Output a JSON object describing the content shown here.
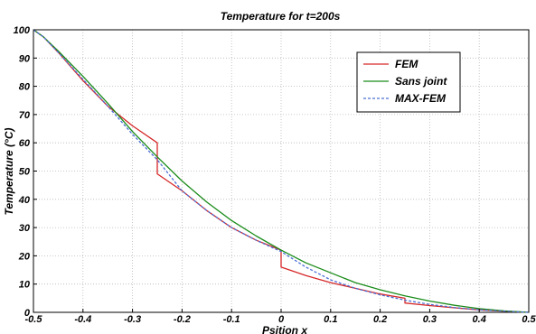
{
  "chart_data": {
    "type": "line",
    "title": "Temperature for t=200s",
    "xlabel": "Psition x",
    "ylabel": "Temperature (°C)",
    "xlim": [
      -0.5,
      0.5
    ],
    "ylim": [
      0,
      100
    ],
    "xticks": [
      -0.5,
      -0.4,
      -0.3,
      -0.2,
      -0.1,
      0,
      0.1,
      0.2,
      0.3,
      0.4,
      0.5
    ],
    "xtick_labels": [
      "-0.5",
      "-0.4",
      "-0.3",
      "-0.2",
      "-0.1",
      "0",
      "0.1",
      "0.2",
      "0.3",
      "0.4",
      "0.5"
    ],
    "yticks": [
      0,
      10,
      20,
      30,
      40,
      50,
      60,
      70,
      80,
      90,
      100
    ],
    "ytick_labels": [
      "0",
      "10",
      "20",
      "30",
      "40",
      "50",
      "60",
      "70",
      "80",
      "90",
      "100"
    ],
    "grid": true,
    "legend_position": "top-right",
    "series": [
      {
        "name": "FEM",
        "color": "#d62728",
        "dash": "solid",
        "x": [
          -0.5,
          -0.48,
          -0.45,
          -0.4,
          -0.35,
          -0.3,
          -0.25,
          -0.25,
          -0.2,
          -0.15,
          -0.1,
          -0.05,
          0,
          0,
          0.05,
          0.1,
          0.15,
          0.2,
          0.25,
          0.25,
          0.3,
          0.35,
          0.4,
          0.45,
          0.5
        ],
        "y": [
          100,
          97.5,
          92,
          82,
          73,
          66,
          60,
          49,
          43,
          36,
          30,
          25.5,
          22,
          16,
          13,
          10.5,
          8.5,
          6.5,
          5,
          3.3,
          2.4,
          1.6,
          0.9,
          0.4,
          0
        ]
      },
      {
        "name": "Sans joint",
        "color": "#1a8c1a",
        "dash": "solid",
        "x": [
          -0.5,
          -0.48,
          -0.45,
          -0.4,
          -0.35,
          -0.3,
          -0.25,
          -0.2,
          -0.15,
          -0.1,
          -0.05,
          0,
          0.05,
          0.1,
          0.15,
          0.2,
          0.25,
          0.3,
          0.35,
          0.4,
          0.45,
          0.5
        ],
        "y": [
          100,
          97.5,
          92.5,
          83.5,
          74,
          64,
          55,
          46.5,
          39,
          32.5,
          27,
          22,
          17.5,
          14,
          10.5,
          8,
          5.8,
          4,
          2.5,
          1.3,
          0.5,
          0
        ]
      },
      {
        "name": "MAX-FEM",
        "color": "#4a6fd6",
        "dash": "dashed",
        "x": [
          -0.5,
          -0.48,
          -0.45,
          -0.4,
          -0.35,
          -0.3,
          -0.25,
          -0.2,
          -0.15,
          -0.1,
          -0.05,
          0,
          0.05,
          0.1,
          0.15,
          0.2,
          0.25,
          0.3,
          0.35,
          0.4,
          0.45,
          0.5
        ],
        "y": [
          100,
          97.5,
          92,
          82.5,
          73,
          63,
          54,
          43,
          36,
          30,
          25.5,
          21.5,
          16,
          11.5,
          8.5,
          6.2,
          4.3,
          2.8,
          1.7,
          0.9,
          0.4,
          0
        ]
      }
    ]
  }
}
